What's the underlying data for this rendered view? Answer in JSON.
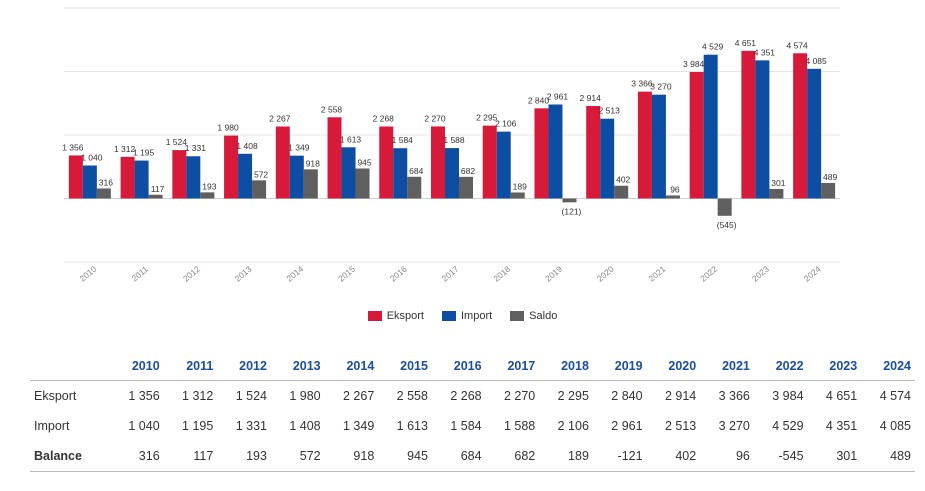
{
  "chart_data": {
    "type": "bar",
    "categories": [
      "2010",
      "2011",
      "2012",
      "2013",
      "2014",
      "2015",
      "2016",
      "2017",
      "2018",
      "2019",
      "2020",
      "2021",
      "2022",
      "2023",
      "2024"
    ],
    "series": [
      {
        "name": "Eksport",
        "color": "#d7193a",
        "values": [
          1356,
          1312,
          1524,
          1980,
          2267,
          2558,
          2268,
          2270,
          2295,
          2840,
          2914,
          3366,
          3984,
          4651,
          4574
        ],
        "labels": [
          "1 356",
          "1 312",
          "1 524",
          "1 980",
          "2 267",
          "2 558",
          "2 268",
          "2 270",
          "2 295",
          "2 840",
          "2 914",
          "3 366",
          "3 984",
          "4 651",
          "4 574"
        ]
      },
      {
        "name": "Import",
        "color": "#0e4ea2",
        "values": [
          1040,
          1195,
          1331,
          1408,
          1349,
          1613,
          1584,
          1588,
          2106,
          2961,
          2513,
          3270,
          4529,
          4351,
          4085
        ],
        "labels": [
          "1 040",
          "1 195",
          "1 331",
          "1 408",
          "1 349",
          "1 613",
          "1 584",
          "1 588",
          "2 106",
          "2 961",
          "2 513",
          "3 270",
          "4 529",
          "4 351",
          "4 085"
        ]
      },
      {
        "name": "Saldo",
        "color": "#5f5f5f",
        "values": [
          316,
          117,
          193,
          572,
          918,
          945,
          684,
          682,
          189,
          -121,
          402,
          96,
          -545,
          301,
          489
        ],
        "labels": [
          "316",
          "117",
          "193",
          "572",
          "918",
          "945",
          "684",
          "682",
          "189",
          "(121)",
          "402",
          "96",
          "(545)",
          "301",
          "489"
        ]
      }
    ],
    "ylim": [
      -2000,
      6000
    ],
    "grid": true,
    "legend_position": "bottom"
  },
  "table": {
    "years": [
      "2010",
      "2011",
      "2012",
      "2013",
      "2014",
      "2015",
      "2016",
      "2017",
      "2018",
      "2019",
      "2020",
      "2021",
      "2022",
      "2023",
      "2024"
    ],
    "rows": [
      {
        "label": "Eksport",
        "values": [
          "1 356",
          "1 312",
          "1 524",
          "1 980",
          "2 267",
          "2 558",
          "2 268",
          "2 270",
          "2 295",
          "2 840",
          "2 914",
          "3 366",
          "3 984",
          "4 651",
          "4 574"
        ]
      },
      {
        "label": "Import",
        "values": [
          "1 040",
          "1 195",
          "1 331",
          "1 408",
          "1 349",
          "1 613",
          "1 584",
          "1 588",
          "2 106",
          "2 961",
          "2 513",
          "3 270",
          "4 529",
          "4 351",
          "4 085"
        ]
      },
      {
        "label": "Balance",
        "values": [
          "316",
          "117",
          "193",
          "572",
          "918",
          "945",
          "684",
          "682",
          "189",
          "-121",
          "402",
          "96",
          "-545",
          "301",
          "489"
        ]
      }
    ]
  }
}
